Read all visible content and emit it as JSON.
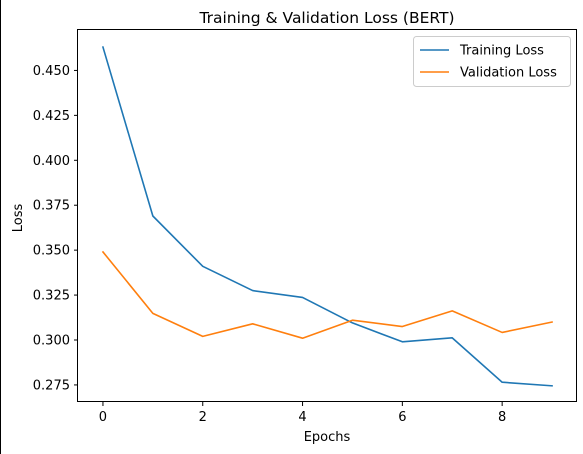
{
  "chart_data": {
    "type": "line",
    "title": "Training & Validation Loss (BERT)",
    "xlabel": "Epochs",
    "ylabel": "Loss",
    "x": [
      0,
      1,
      2,
      3,
      4,
      5,
      6,
      7,
      8,
      9
    ],
    "xlim": [
      -0.5,
      9.5
    ],
    "ylim": [
      0.2655,
      0.4725
    ],
    "xticks": [
      0,
      2,
      4,
      6,
      8
    ],
    "yticks": [
      0.275,
      0.3,
      0.325,
      0.35,
      0.375,
      0.4,
      0.425,
      0.45
    ],
    "ytick_labels": [
      "0.275",
      "0.300",
      "0.325",
      "0.350",
      "0.375",
      "0.400",
      "0.425",
      "0.450"
    ],
    "grid": false,
    "legend_position": "top-right",
    "series": [
      {
        "name": "Training Loss",
        "color": "#1f77b4",
        "values": [
          0.463,
          0.369,
          0.341,
          0.3275,
          0.3237,
          0.3095,
          0.299,
          0.3012,
          0.2765,
          0.2745
        ]
      },
      {
        "name": "Validation Loss",
        "color": "#ff7f0e",
        "values": [
          0.349,
          0.3148,
          0.302,
          0.309,
          0.301,
          0.311,
          0.3075,
          0.3162,
          0.3042,
          0.31
        ]
      }
    ]
  }
}
